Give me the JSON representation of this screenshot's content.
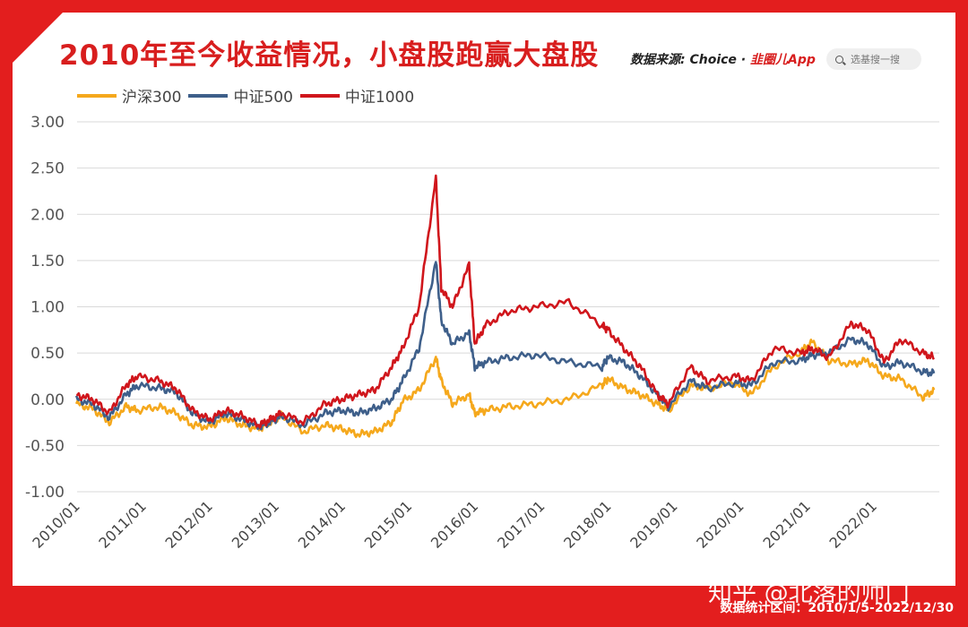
{
  "header": {
    "title": "2010年至今收益情况，小盘股跑赢大盘股",
    "source_prefix": "数据来源: Choice · ",
    "source_brand": "韭圈儿App",
    "search_placeholder": "选基搜一搜"
  },
  "footer": {
    "date_range": "数据统计区间：2010/1/5-2022/12/30",
    "watermark": "知乎 @北落的师门"
  },
  "colors": {
    "frame": "#e31e1e",
    "hs300": "#f5a81c",
    "zz500": "#3e5f8a",
    "zz1000": "#d0161c",
    "grid": "#d9d9d9"
  },
  "chart_data": {
    "type": "line",
    "legend_position": "top-left",
    "grid": true,
    "ylim": [
      -1.0,
      3.0
    ],
    "yticks": [
      "3.00",
      "2.50",
      "2.00",
      "1.50",
      "1.00",
      "0.50",
      "0.00",
      "-0.50",
      "-1.00"
    ],
    "ytick_values": [
      3.0,
      2.5,
      2.0,
      1.5,
      1.0,
      0.5,
      0.0,
      -0.5,
      -1.0
    ],
    "xticks": [
      "2010/01",
      "2011/01",
      "2012/01",
      "2013/01",
      "2014/01",
      "2015/01",
      "2016/01",
      "2017/01",
      "2018/01",
      "2019/01",
      "2020/01",
      "2021/01",
      "2022/01"
    ],
    "xlim": [
      "2010-01-05",
      "2022-12-30"
    ],
    "series": [
      {
        "name": "沪深300",
        "key": "hs300",
        "x": [
          "2010-01",
          "2010-04",
          "2010-07",
          "2010-10",
          "2010-12",
          "2011-04",
          "2011-07",
          "2011-10",
          "2012-01",
          "2012-04",
          "2012-07",
          "2012-10",
          "2012-12",
          "2013-02",
          "2013-06",
          "2013-10",
          "2014-01",
          "2014-04",
          "2014-07",
          "2014-10",
          "2014-12",
          "2015-03",
          "2015-06",
          "2015-07",
          "2015-09",
          "2015-12",
          "2016-01",
          "2016-03",
          "2016-07",
          "2016-12",
          "2017-06",
          "2017-12",
          "2018-01",
          "2018-04",
          "2018-07",
          "2018-10",
          "2018-12",
          "2019-04",
          "2019-07",
          "2019-12",
          "2020-03",
          "2020-07",
          "2020-12",
          "2021-02",
          "2021-05",
          "2021-09",
          "2021-12",
          "2022-03",
          "2022-06",
          "2022-10",
          "2022-12"
        ],
        "y": [
          -0.05,
          -0.1,
          -0.25,
          -0.08,
          -0.12,
          -0.08,
          -0.15,
          -0.28,
          -0.3,
          -0.2,
          -0.28,
          -0.32,
          -0.25,
          -0.18,
          -0.35,
          -0.28,
          -0.32,
          -0.38,
          -0.35,
          -0.25,
          -0.02,
          0.1,
          0.45,
          0.2,
          -0.05,
          0.05,
          -0.15,
          -0.12,
          -0.08,
          -0.05,
          0.0,
          0.15,
          0.22,
          0.12,
          0.05,
          -0.05,
          -0.12,
          0.15,
          0.12,
          0.18,
          0.05,
          0.35,
          0.52,
          0.62,
          0.42,
          0.38,
          0.42,
          0.25,
          0.22,
          0.02,
          0.1
        ]
      },
      {
        "name": "中证500",
        "key": "zz500",
        "x": [
          "2010-01",
          "2010-04",
          "2010-07",
          "2010-10",
          "2010-12",
          "2011-04",
          "2011-07",
          "2011-10",
          "2012-01",
          "2012-04",
          "2012-07",
          "2012-10",
          "2012-12",
          "2013-02",
          "2013-06",
          "2013-10",
          "2014-01",
          "2014-04",
          "2014-07",
          "2014-10",
          "2014-12",
          "2015-03",
          "2015-06",
          "2015-07",
          "2015-09",
          "2015-12",
          "2016-01",
          "2016-03",
          "2016-07",
          "2016-12",
          "2017-06",
          "2017-12",
          "2018-01",
          "2018-04",
          "2018-07",
          "2018-10",
          "2018-12",
          "2019-04",
          "2019-07",
          "2019-12",
          "2020-03",
          "2020-07",
          "2020-12",
          "2021-02",
          "2021-05",
          "2021-09",
          "2021-12",
          "2022-03",
          "2022-06",
          "2022-10",
          "2022-12"
        ],
        "y": [
          0.0,
          -0.05,
          -0.2,
          0.05,
          0.15,
          0.12,
          0.08,
          -0.15,
          -0.25,
          -0.15,
          -0.22,
          -0.3,
          -0.25,
          -0.18,
          -0.28,
          -0.15,
          -0.12,
          -0.15,
          -0.1,
          0.0,
          0.2,
          0.55,
          1.5,
          0.85,
          0.6,
          0.72,
          0.35,
          0.4,
          0.45,
          0.48,
          0.4,
          0.35,
          0.45,
          0.4,
          0.25,
          0.05,
          -0.08,
          0.2,
          0.12,
          0.18,
          0.15,
          0.4,
          0.42,
          0.48,
          0.5,
          0.65,
          0.6,
          0.35,
          0.4,
          0.3,
          0.28
        ]
      },
      {
        "name": "中证1000",
        "key": "zz1000",
        "x": [
          "2010-01",
          "2010-04",
          "2010-07",
          "2010-10",
          "2010-12",
          "2011-04",
          "2011-07",
          "2011-10",
          "2012-01",
          "2012-04",
          "2012-07",
          "2012-10",
          "2012-12",
          "2013-02",
          "2013-06",
          "2013-10",
          "2014-01",
          "2014-04",
          "2014-07",
          "2014-10",
          "2014-12",
          "2015-03",
          "2015-06",
          "2015-07",
          "2015-09",
          "2015-12",
          "2016-01",
          "2016-03",
          "2016-07",
          "2016-12",
          "2017-06",
          "2017-12",
          "2018-01",
          "2018-04",
          "2018-07",
          "2018-10",
          "2018-12",
          "2019-04",
          "2019-07",
          "2019-12",
          "2020-03",
          "2020-07",
          "2020-12",
          "2021-02",
          "2021-05",
          "2021-09",
          "2021-12",
          "2022-03",
          "2022-06",
          "2022-10",
          "2022-12"
        ],
        "y": [
          0.05,
          0.0,
          -0.15,
          0.15,
          0.25,
          0.2,
          0.12,
          -0.12,
          -0.22,
          -0.12,
          -0.18,
          -0.28,
          -0.22,
          -0.15,
          -0.25,
          -0.05,
          0.0,
          0.05,
          0.1,
          0.35,
          0.55,
          1.0,
          2.4,
          1.2,
          1.0,
          1.45,
          0.6,
          0.8,
          0.95,
          1.0,
          1.05,
          0.8,
          0.75,
          0.55,
          0.35,
          0.05,
          -0.05,
          0.35,
          0.2,
          0.25,
          0.2,
          0.55,
          0.5,
          0.55,
          0.45,
          0.82,
          0.75,
          0.4,
          0.65,
          0.5,
          0.45
        ]
      }
    ]
  }
}
